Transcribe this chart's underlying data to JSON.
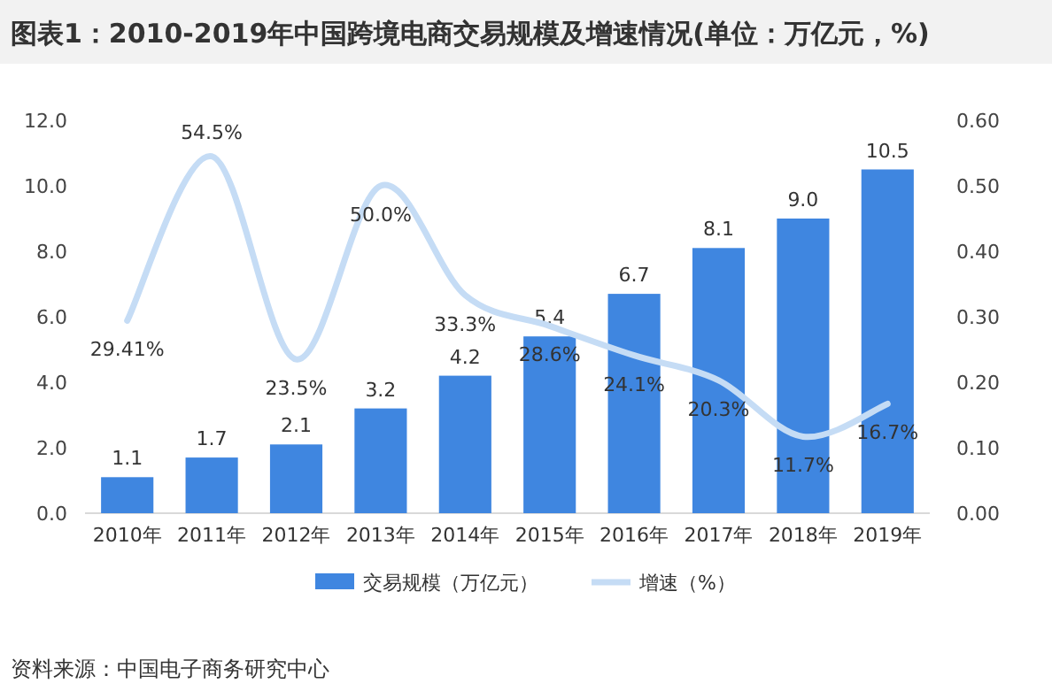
{
  "chart_data": {
    "type": "bar",
    "title": "图表1：2010-2019年中国跨境电商交易规模及增速情况(单位：万亿元，%)",
    "categories": [
      "2010年",
      "2011年",
      "2012年",
      "2013年",
      "2014年",
      "2015年",
      "2016年",
      "2017年",
      "2018年",
      "2019年"
    ],
    "series": [
      {
        "name": "交易规模（万亿元）",
        "color": "#3f86e0",
        "values": [
          1.1,
          1.7,
          2.1,
          3.2,
          4.2,
          5.4,
          6.7,
          8.1,
          9.0,
          10.5
        ],
        "value_labels": [
          "1.1",
          "1.7",
          "2.1",
          "3.2",
          "4.2",
          "5.4",
          "6.7",
          "8.1",
          "9.0",
          "10.5"
        ]
      },
      {
        "name": "增速（%）",
        "type": "line",
        "axis": "y2",
        "color": "#c5dcf5",
        "values": [
          0.2941,
          0.545,
          0.235,
          0.5,
          0.333,
          0.286,
          0.241,
          0.203,
          0.117,
          0.167
        ],
        "value_labels": [
          "29.41%",
          "54.5%",
          "23.5%",
          "50.0%",
          "33.3%",
          "28.6%",
          "24.1%",
          "20.3%",
          "11.7%",
          "16.7%"
        ]
      }
    ],
    "ylim": [
      0,
      12
    ],
    "yticks": [
      {
        "value": 0,
        "label": "0.0"
      },
      {
        "value": 2,
        "label": "2.0"
      },
      {
        "value": 4,
        "label": "4.0"
      },
      {
        "value": 6,
        "label": "6.0"
      },
      {
        "value": 8,
        "label": "8.0"
      },
      {
        "value": 10,
        "label": "10.0"
      },
      {
        "value": 12,
        "label": "12.0"
      }
    ],
    "y2lim": [
      0,
      0.6
    ],
    "y2ticks": [
      {
        "value": 0,
        "label": "0.00"
      },
      {
        "value": 0.1,
        "label": "0.10"
      },
      {
        "value": 0.2,
        "label": "0.20"
      },
      {
        "value": 0.3,
        "label": "0.30"
      },
      {
        "value": 0.4,
        "label": "0.40"
      },
      {
        "value": 0.5,
        "label": "0.50"
      },
      {
        "value": 0.6,
        "label": "0.60"
      }
    ],
    "legend": "bottom",
    "annotations": [
      "资料来源：中国电子商务研究中心"
    ]
  }
}
